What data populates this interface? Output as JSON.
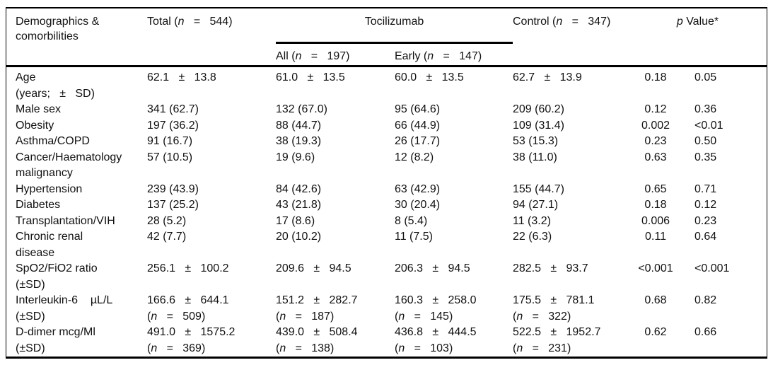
{
  "colors": {
    "background": "#ffffff",
    "text": "#111111",
    "rule": "#000000"
  },
  "table": {
    "header": {
      "label_lines": [
        "Demographics &",
        "comorbilities"
      ],
      "total": [
        [
          "Total (",
          0
        ],
        [
          "n",
          1
        ],
        [
          "   =   544)",
          0
        ]
      ],
      "group": "Tocilizumab",
      "all": [
        [
          "All (",
          0
        ],
        [
          "n",
          1
        ],
        [
          "   =   197)",
          0
        ]
      ],
      "early": [
        [
          "Early (",
          0
        ],
        [
          "n",
          1
        ],
        [
          "   =   147)",
          0
        ]
      ],
      "control": [
        [
          "Control (",
          0
        ],
        [
          "n",
          1
        ],
        [
          "   =   347)",
          0
        ]
      ],
      "p_value": [
        [
          "p",
          1
        ],
        [
          " Value*",
          0
        ]
      ]
    },
    "rows": [
      {
        "label": [
          "Age",
          "(years;   ±   SD)"
        ],
        "cells": {
          "total": [
            "62.1   ±   13.8"
          ],
          "all": [
            "61.0   ±   13.5"
          ],
          "early": [
            "60.0   ±   13.5"
          ],
          "control": [
            "62.7   ±   13.9"
          ]
        },
        "p1": "0.18",
        "p2": "0.05"
      },
      {
        "label": [
          "Male sex"
        ],
        "cells": {
          "total": [
            "341 (62.7)"
          ],
          "all": [
            "132 (67.0)"
          ],
          "early": [
            "95 (64.6)"
          ],
          "control": [
            "209 (60.2)"
          ]
        },
        "p1": "0.12",
        "p2": "0.36"
      },
      {
        "label": [
          "Obesity"
        ],
        "cells": {
          "total": [
            "197 (36.2)"
          ],
          "all": [
            "88 (44.7)"
          ],
          "early": [
            "66 (44.9)"
          ],
          "control": [
            "109 (31.4)"
          ]
        },
        "p1": "0.002",
        "p2": "<0.01"
      },
      {
        "label": [
          "Asthma/COPD"
        ],
        "cells": {
          "total": [
            "91 (16.7)"
          ],
          "all": [
            "38 (19.3)"
          ],
          "early": [
            "26 (17.7)"
          ],
          "control": [
            "53 (15.3)"
          ]
        },
        "p1": "0.23",
        "p2": "0.50"
      },
      {
        "label": [
          "Cancer/Haematology",
          "malignancy"
        ],
        "cells": {
          "total": [
            "57 (10.5)"
          ],
          "all": [
            "19 (9.6)"
          ],
          "early": [
            "12 (8.2)"
          ],
          "control": [
            "38 (11.0)"
          ]
        },
        "p1": "0.63",
        "p2": "0.35"
      },
      {
        "label": [
          "Hypertension"
        ],
        "cells": {
          "total": [
            "239 (43.9)"
          ],
          "all": [
            "84 (42.6)"
          ],
          "early": [
            "63 (42.9)"
          ],
          "control": [
            "155 (44.7)"
          ]
        },
        "p1": "0.65",
        "p2": "0.71"
      },
      {
        "label": [
          "Diabetes"
        ],
        "cells": {
          "total": [
            "137 (25.2)"
          ],
          "all": [
            "43 (21.8)"
          ],
          "early": [
            "30 (20.4)"
          ],
          "control": [
            "94 (27.1)"
          ]
        },
        "p1": "0.18",
        "p2": "0.12"
      },
      {
        "label": [
          "Transplantation/VIH"
        ],
        "cells": {
          "total": [
            "28 (5.2)"
          ],
          "all": [
            "17 (8.6)"
          ],
          "early": [
            "8 (5.4)"
          ],
          "control": [
            "11 (3.2)"
          ]
        },
        "p1": "0.006",
        "p2": "0.23"
      },
      {
        "label": [
          "Chronic renal",
          "disease"
        ],
        "cells": {
          "total": [
            "42 (7.7)"
          ],
          "all": [
            "20 (10.2)"
          ],
          "early": [
            "11 (7.5)"
          ],
          "control": [
            "22 (6.3)"
          ]
        },
        "p1": "0.11",
        "p2": "0.64"
      },
      {
        "label": [
          "SpO2/FiO2 ratio",
          "(±SD)"
        ],
        "cells": {
          "total": [
            "256.1   ±   100.2"
          ],
          "all": [
            "209.6   ±   94.5"
          ],
          "early": [
            "206.3   ±   94.5"
          ],
          "control": [
            "282.5   ±   93.7"
          ]
        },
        "p1": "<0.001",
        "p2": "<0.001"
      },
      {
        "label": [
          "Interleukin-6    µL/L",
          "(±SD)"
        ],
        "cells": {
          "total": [
            "166.6   ±   644.1",
            [
              [
                "(",
                0
              ],
              [
                "n",
                1
              ],
              [
                "   =   509)",
                0
              ]
            ]
          ],
          "all": [
            "151.2   ±   282.7",
            [
              [
                "(",
                0
              ],
              [
                "n",
                1
              ],
              [
                "   =   187)",
                0
              ]
            ]
          ],
          "early": [
            "160.3   ±   258.0",
            [
              [
                "(",
                0
              ],
              [
                "n",
                1
              ],
              [
                "   =   145)",
                0
              ]
            ]
          ],
          "control": [
            "175.5   ±   781.1",
            [
              [
                "(",
                0
              ],
              [
                "n",
                1
              ],
              [
                "   =   322)",
                0
              ]
            ]
          ]
        },
        "p1": "0.68",
        "p2": "0.82"
      },
      {
        "label": [
          "D-dimer mcg/Ml",
          "(±SD)"
        ],
        "cells": {
          "total": [
            "491.0   ±   1575.2",
            [
              [
                "(",
                0
              ],
              [
                "n",
                1
              ],
              [
                "   =   369)",
                0
              ]
            ]
          ],
          "all": [
            "439.0   ±   508.4",
            [
              [
                "(",
                0
              ],
              [
                "n",
                1
              ],
              [
                "   =   138)",
                0
              ]
            ]
          ],
          "early": [
            "436.8   ±   444.5",
            [
              [
                "(",
                0
              ],
              [
                "n",
                1
              ],
              [
                "   =   103)",
                0
              ]
            ]
          ],
          "control": [
            "522.5   ±   1952.7",
            [
              [
                "(",
                0
              ],
              [
                "n",
                1
              ],
              [
                "   =   231)",
                0
              ]
            ]
          ]
        },
        "p1": "0.62",
        "p2": "0.66"
      }
    ]
  }
}
